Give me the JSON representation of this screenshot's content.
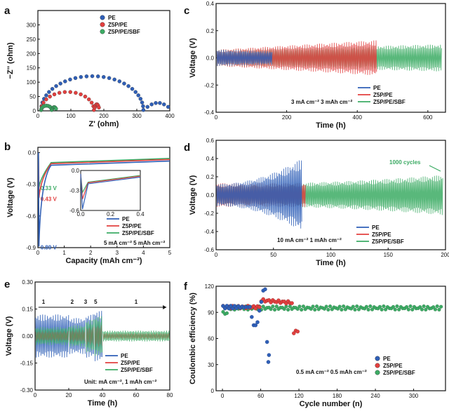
{
  "colors": {
    "pe": "#2f5fb7",
    "z5p": "#e2403f",
    "sbf": "#3cab64",
    "pe_light": "#5f8ad8",
    "z5p_light": "#f08a86",
    "sbf_light": "#7fd39a"
  },
  "chart_data": [
    {
      "id": "a",
      "type": "scatter",
      "panel_label": "a",
      "xlabel": "Z' (ohm)",
      "ylabel": "−Z'' (ohm)",
      "xlim": [
        0,
        400
      ],
      "ylim": [
        0,
        350
      ],
      "xticks": [
        "0",
        "100",
        "200",
        "300",
        "400"
      ],
      "yticks": [
        "0",
        "50",
        "100",
        "150",
        "200",
        "250",
        "300"
      ],
      "legend": [
        "PE",
        "Z5P/PE",
        "Z5P/PE/SBF"
      ],
      "series": [
        {
          "name": "PE",
          "arc_start": 10,
          "arc_end": 320,
          "peak": 118,
          "tail_end": 395,
          "tail_height": 25
        },
        {
          "name": "Z5P/PE",
          "arc_start": 10,
          "arc_end": 170,
          "peak": 63,
          "tail_end": 185,
          "tail_height": 20
        },
        {
          "name": "Z5P/PE/SBF",
          "arc_start": 10,
          "arc_end": 42,
          "peak": 15,
          "tail_end": 55,
          "tail_height": 10
        }
      ]
    },
    {
      "id": "b",
      "type": "line",
      "panel_label": "b",
      "xlabel": "Capacity (mAh cm⁻²)",
      "ylabel": "Voltage (V)",
      "xlim": [
        0,
        5
      ],
      "ylim": [
        -0.9,
        0.05
      ],
      "xticks": [
        "0",
        "1",
        "2",
        "3",
        "4",
        "5"
      ],
      "yticks": [
        "0.0",
        "-0.3",
        "-0.6",
        "-0.9"
      ],
      "legend": [
        "PE",
        "Z5P/PE",
        "Z5P/PE/SBF"
      ],
      "condition": "5 mA cm⁻²  5 mAh cm⁻²",
      "nucleation_overpotentials": [
        {
          "series": "Z5P/PE/SBF",
          "label": "0.33 V",
          "value": -0.33
        },
        {
          "series": "Z5P/PE",
          "label": "0.43 V",
          "value": -0.43
        },
        {
          "series": "PE",
          "label": "0.89 V",
          "value": -0.89
        }
      ],
      "plateau": {
        "PE": -0.08,
        "Z5P/PE": -0.065,
        "Z5P/PE/SBF": -0.055
      },
      "inset": {
        "xlim": [
          0,
          0.4
        ],
        "ylim": [
          -0.6,
          0.0
        ],
        "xticks": [
          "0.0",
          "0.2",
          "0.4"
        ],
        "yticks": [
          "0.0",
          "-0.3",
          "-0.6"
        ]
      }
    },
    {
      "id": "c",
      "type": "line",
      "panel_label": "c",
      "xlabel": "Time (h)",
      "ylabel": "Voltage (V)",
      "xlim": [
        0,
        650
      ],
      "ylim": [
        -0.4,
        0.4
      ],
      "xticks": [
        "0",
        "200",
        "400",
        "600"
      ],
      "yticks": [
        "0.4",
        "0.2",
        "0.0",
        "-0.2",
        "-0.4"
      ],
      "legend": [
        "PE",
        "Z5P/PE",
        "Z5P/PE/SBF"
      ],
      "condition": "3 mA cm⁻²  3 mAh cm⁻²",
      "series": [
        {
          "name": "Z5P/PE/SBF",
          "t_end": 640,
          "amplitude_start": 0.06,
          "amplitude_end": 0.1
        },
        {
          "name": "Z5P/PE",
          "t_end": 455,
          "amplitude_start": 0.06,
          "amplitude_end": 0.13
        },
        {
          "name": "PE",
          "t_end": 160,
          "amplitude_start": 0.06,
          "amplitude_end": 0.05
        }
      ]
    },
    {
      "id": "d",
      "type": "line",
      "panel_label": "d",
      "xlabel": "Time (h)",
      "ylabel": "Voltage (V)",
      "xlim": [
        0,
        200
      ],
      "ylim": [
        -0.6,
        0.6
      ],
      "xticks": [
        "0",
        "50",
        "100",
        "150",
        "200"
      ],
      "yticks": [
        "0.6",
        "0.4",
        "0.2",
        "0.0",
        "-0.2",
        "-0.4",
        "-0.6"
      ],
      "legend": [
        "PE",
        "Z5P/PE",
        "Z5P/PE/SBF"
      ],
      "condition": "10 mA cm⁻²  1 mAh cm⁻²",
      "annotation": "1000 cycles",
      "series": [
        {
          "name": "Z5P/PE/SBF",
          "t_end": 198,
          "amplitude_start": 0.12,
          "amplitude_end": 0.22
        },
        {
          "name": "Z5P/PE",
          "t_end": 78,
          "amplitude_start": 0.13,
          "amplitude_end": 0.13
        },
        {
          "name": "PE",
          "t_end": 75,
          "amplitude_start": 0.12,
          "amplitude_end": 0.4
        }
      ]
    },
    {
      "id": "e",
      "type": "line",
      "panel_label": "e",
      "xlabel": "Time (h)",
      "ylabel": "Voltage (V)",
      "xlim": [
        0,
        80
      ],
      "ylim": [
        -0.3,
        0.3
      ],
      "xticks": [
        "0",
        "20",
        "40",
        "60",
        "80"
      ],
      "yticks": [
        "0.30",
        "0.15",
        "0.00",
        "-0.15",
        "-0.30"
      ],
      "legend": [
        "PE",
        "Z5P/PE",
        "Z5P/PE/SBF"
      ],
      "condition": "Unit: mA cm⁻², 1 mAh cm⁻²",
      "rate_labels": [
        {
          "label": "1",
          "t": 5
        },
        {
          "label": "2",
          "t": 22
        },
        {
          "label": "3",
          "t": 30
        },
        {
          "label": "5",
          "t": 36
        },
        {
          "label": "1",
          "t": 60
        }
      ],
      "segments": [
        {
          "rate": "1",
          "t_start": 0,
          "t_end": 20,
          "amp_PE": 0.12,
          "amp_SBF": 0.05
        },
        {
          "rate": "2",
          "t_start": 20,
          "t_end": 30,
          "amp_PE": 0.1,
          "amp_SBF": 0.06
        },
        {
          "rate": "3",
          "t_start": 30,
          "t_end": 35,
          "amp_PE": 0.12,
          "amp_SBF": 0.09
        },
        {
          "rate": "5",
          "t_start": 35,
          "t_end": 40,
          "amp_PE": 0.14,
          "amp_SBF": 0.11
        },
        {
          "rate": "1",
          "t_start": 40,
          "t_end": 80,
          "amp_PE": 0.0,
          "amp_SBF": 0.03
        }
      ]
    },
    {
      "id": "f",
      "type": "scatter",
      "panel_label": "f",
      "xlabel": "Cycle number (n)",
      "ylabel": "Coulombic efficiency (%)",
      "xlim": [
        -10,
        350
      ],
      "ylim": [
        0,
        120
      ],
      "xticks": [
        "0",
        "60",
        "120",
        "180",
        "240",
        "300"
      ],
      "yticks": [
        "0",
        "30",
        "60",
        "90",
        "120"
      ],
      "legend": [
        "PE",
        "Z5P/PE",
        "Z5P/PE/SBF"
      ],
      "condition": "0.5 mA cm⁻²  0.5 mAh cm⁻²",
      "series": [
        {
          "name": "PE",
          "cycles_end": 75,
          "baseline": 96
        },
        {
          "name": "Z5P/PE",
          "cycles_end": 120,
          "baseline": 96
        },
        {
          "name": "Z5P/PE/SBF",
          "cycles_end": 345,
          "baseline": 95
        }
      ]
    }
  ]
}
